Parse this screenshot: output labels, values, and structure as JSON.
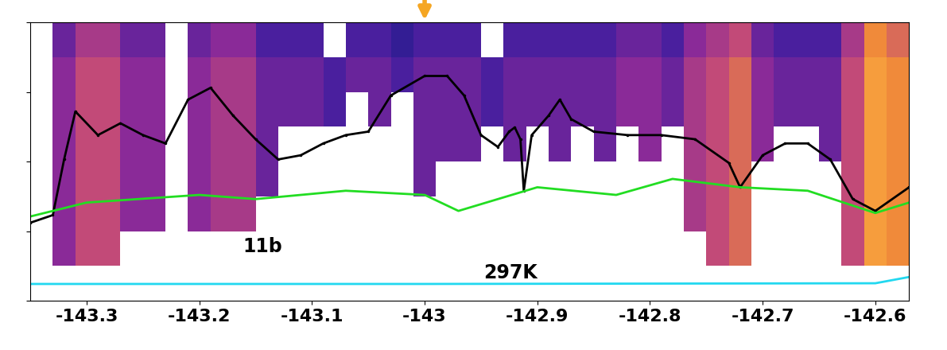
{
  "chart_data": {
    "type": "curtain",
    "xlim": [
      -143.35,
      -142.57
    ],
    "xticks": [
      -143.3,
      -143.2,
      -143.1,
      -143,
      -142.9,
      -142.8,
      -142.7,
      -142.6
    ],
    "ylim": [
      0,
      4
    ],
    "yticks": [
      0,
      1,
      2,
      3,
      4
    ],
    "tick_labels": "x",
    "cells": {
      "x_edges": [
        -143.35,
        -143.33,
        -143.31,
        -143.29,
        -143.27,
        -143.25,
        -143.23,
        -143.21,
        -143.19,
        -143.17,
        -143.15,
        -143.13,
        -143.11,
        -143.09,
        -143.07,
        -143.05,
        -143.03,
        -143.01,
        -142.99,
        -142.97,
        -142.95,
        -142.93,
        -142.91,
        -142.89,
        -142.87,
        -142.85,
        -142.83,
        -142.81,
        -142.79,
        -142.77,
        -142.75,
        -142.73,
        -142.71,
        -142.69,
        -142.67,
        -142.65,
        -142.63,
        -142.61,
        -142.59,
        -142.57
      ],
      "y_edges": [
        0,
        0.5,
        1,
        1.5,
        2,
        2.5,
        3,
        3.5,
        4
      ],
      "color_range": [
        0,
        10
      ],
      "values": [
        [
          null,
          null,
          null,
          null,
          null,
          null,
          null,
          null,
          null,
          null,
          null,
          null,
          null,
          null,
          null,
          null,
          null,
          null,
          null,
          null,
          null,
          null,
          null,
          null,
          null,
          null,
          null,
          null,
          null,
          null,
          null,
          null,
          null,
          null,
          null,
          null,
          null,
          null,
          null
        ],
        [
          null,
          4,
          6,
          6,
          null,
          null,
          null,
          null,
          null,
          null,
          null,
          null,
          null,
          null,
          null,
          null,
          null,
          null,
          null,
          null,
          null,
          null,
          null,
          null,
          null,
          null,
          null,
          null,
          null,
          null,
          6,
          7,
          null,
          null,
          null,
          null,
          6,
          9,
          8
        ],
        [
          null,
          4,
          6,
          6,
          4,
          4,
          null,
          4,
          5,
          5,
          null,
          null,
          null,
          null,
          null,
          null,
          null,
          null,
          null,
          null,
          null,
          null,
          null,
          null,
          null,
          null,
          null,
          null,
          null,
          5,
          6,
          7,
          null,
          null,
          null,
          null,
          6,
          9,
          8
        ],
        [
          null,
          4,
          6,
          6,
          4,
          4,
          null,
          4,
          5,
          5,
          3,
          null,
          null,
          null,
          null,
          null,
          null,
          3,
          null,
          null,
          null,
          null,
          null,
          null,
          null,
          null,
          null,
          null,
          null,
          5,
          6,
          7,
          null,
          null,
          null,
          null,
          6,
          9,
          8
        ],
        [
          null,
          4,
          6,
          6,
          4,
          4,
          null,
          4,
          5,
          5,
          3,
          null,
          null,
          null,
          null,
          null,
          null,
          3,
          3,
          3,
          null,
          3,
          null,
          3,
          null,
          3,
          null,
          4,
          null,
          5,
          6,
          7,
          4,
          null,
          null,
          3,
          6,
          9,
          8
        ],
        [
          null,
          4,
          6,
          6,
          4,
          4,
          null,
          4,
          5,
          5,
          3,
          3,
          3,
          2,
          null,
          3,
          null,
          3,
          3,
          3,
          2,
          3,
          3,
          3,
          3,
          3,
          4,
          4,
          3,
          5,
          6,
          7,
          4,
          3,
          3,
          3,
          6,
          9,
          8
        ],
        [
          null,
          4,
          6,
          6,
          4,
          4,
          null,
          4,
          5,
          5,
          3,
          3,
          3,
          2,
          3,
          3,
          2,
          3,
          3,
          3,
          2,
          3,
          3,
          3,
          3,
          3,
          4,
          4,
          3,
          5,
          6,
          7,
          4,
          3,
          3,
          3,
          6,
          9,
          8
        ],
        [
          null,
          3,
          5,
          5,
          3,
          3,
          null,
          3,
          4,
          4,
          2,
          2,
          2,
          null,
          2,
          2,
          1,
          2,
          2,
          2,
          null,
          2,
          2,
          2,
          2,
          2,
          3,
          3,
          2,
          4,
          5,
          6,
          3,
          2,
          2,
          2,
          5,
          8,
          7
        ]
      ]
    },
    "series": [
      {
        "type": "line",
        "color": "#000000",
        "marker": "dot",
        "x": [
          -143.35,
          -143.33,
          -143.32,
          -143.31,
          -143.29,
          -143.27,
          -143.25,
          -143.23,
          -143.21,
          -143.19,
          -143.17,
          -143.15,
          -143.13,
          -143.11,
          -143.09,
          -143.07,
          -143.05,
          -143.03,
          -143.0,
          -142.98,
          -142.965,
          -142.95,
          -142.935,
          -142.925,
          -142.92,
          -142.915,
          -142.912,
          -142.905,
          -142.89,
          -142.88,
          -142.87,
          -142.85,
          -142.82,
          -142.79,
          -142.76,
          -142.73,
          -142.72,
          -142.7,
          -142.68,
          -142.66,
          -142.64,
          -142.62,
          -142.6,
          -142.57
        ],
        "values": [
          1.12,
          1.23,
          2.03,
          2.72,
          2.38,
          2.55,
          2.38,
          2.26,
          2.89,
          3.06,
          2.66,
          2.32,
          2.03,
          2.09,
          2.26,
          2.38,
          2.43,
          2.95,
          3.23,
          3.23,
          2.95,
          2.38,
          2.21,
          2.43,
          2.49,
          2.32,
          1.58,
          2.38,
          2.66,
          2.89,
          2.61,
          2.43,
          2.38,
          2.38,
          2.32,
          1.98,
          1.63,
          2.09,
          2.26,
          2.26,
          2.03,
          1.46,
          1.29,
          1.63
        ]
      },
      {
        "type": "line",
        "color": "#22dd22",
        "x": [
          -143.35,
          -143.3,
          -143.2,
          -143.15,
          -143.07,
          -143.0,
          -142.97,
          -142.9,
          -142.83,
          -142.78,
          -142.72,
          -142.66,
          -142.6,
          -142.57
        ],
        "values": [
          1.21,
          1.41,
          1.52,
          1.46,
          1.58,
          1.52,
          1.29,
          1.63,
          1.52,
          1.75,
          1.63,
          1.58,
          1.26,
          1.41
        ]
      },
      {
        "type": "line",
        "color": "#22d8f0",
        "x": [
          -143.35,
          -143.0,
          -142.6,
          -142.57
        ],
        "values": [
          0.24,
          0.24,
          0.25,
          0.34
        ]
      }
    ],
    "annotations": [
      {
        "text": "11b",
        "x": -143.144,
        "y": 0.64
      },
      {
        "text": "297K",
        "x": -142.924,
        "y": 0.26
      }
    ],
    "arrow": {
      "x": -143,
      "color": "#f5a623"
    }
  }
}
